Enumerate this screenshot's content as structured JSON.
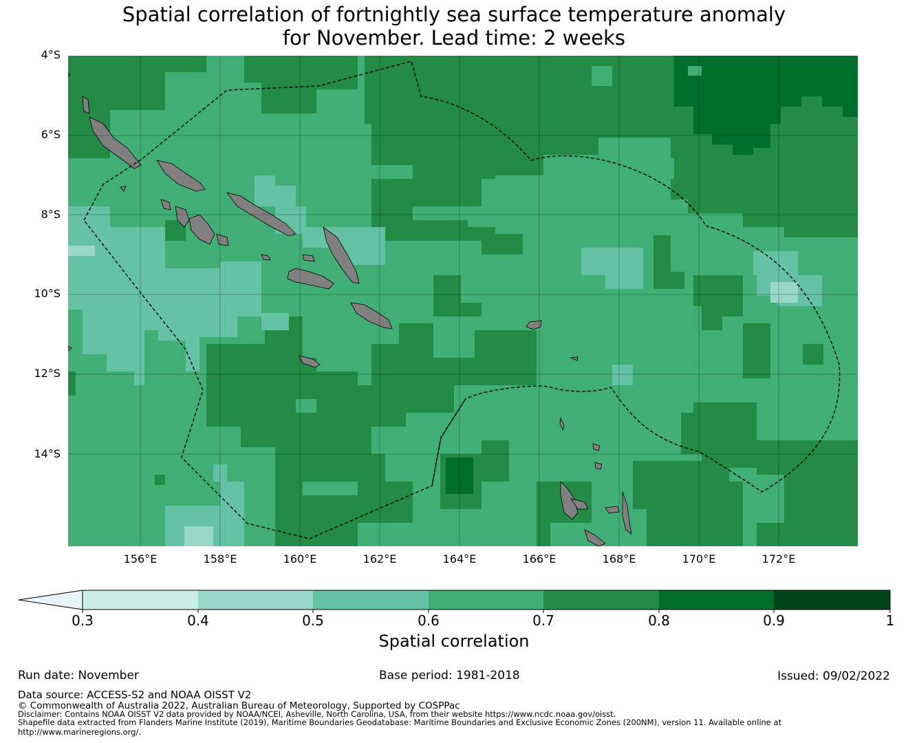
{
  "title": {
    "line1": "Spatial correlation of fortnightly sea surface temperature anomaly",
    "line2": "for November. Lead time: 2 weeks"
  },
  "map": {
    "latitude_labels": [
      "4°S",
      "6°S",
      "8°S",
      "10°S",
      "12°S",
      "14°S"
    ],
    "longitude_labels": [
      "156°E",
      "158°E",
      "160°E",
      "162°E",
      "164°E",
      "166°E",
      "168°E",
      "170°E",
      "172°E"
    ],
    "extent": {
      "lon_min": 154.2,
      "lon_max": 174.0,
      "lat_min": -16.3,
      "lat_max": -4.0
    },
    "colors": {
      "land": "#808080",
      "c03_04": "#ccece6",
      "c04_05": "#99d8c9",
      "c05_06": "#66c2a4",
      "c06_07": "#41ae76",
      "c07_08": "#238b45",
      "c08_09": "#006d2c",
      "c09_10": "#00441b",
      "below": "#e5f5f9"
    }
  },
  "colorbar": {
    "ticks": [
      "0.3",
      "0.4",
      "0.5",
      "0.6",
      "0.7",
      "0.8",
      "0.9",
      "1"
    ],
    "label": "Spatial correlation"
  },
  "footer": {
    "run_date": "Run date: November",
    "base_period": "Base period: 1981-2018",
    "issued": "Issued: 09/02/2022",
    "data_source": "Data source: ACCESS-S2 and NOAA OISST V2",
    "copyright": "© Commonwealth of Australia 2022, Australian Bureau of Meteorology, Supported by COSPPac",
    "disclaimer": "Disclaimer: Contains NOAA OISST V2 data provided by NOAA/NCEI, Asheville, North Carolina, USA, from their website https://www.ncdc.noaa.gov/oisst.",
    "shapefile": "Shapefile data extracted from Flanders Marine Institute (2019), Maritime Boundaries Geodatabase: Maritime Boundaries and Exclusive Economic Zones (200NM), version 11. Available online at http://www.marineregions.org/."
  }
}
